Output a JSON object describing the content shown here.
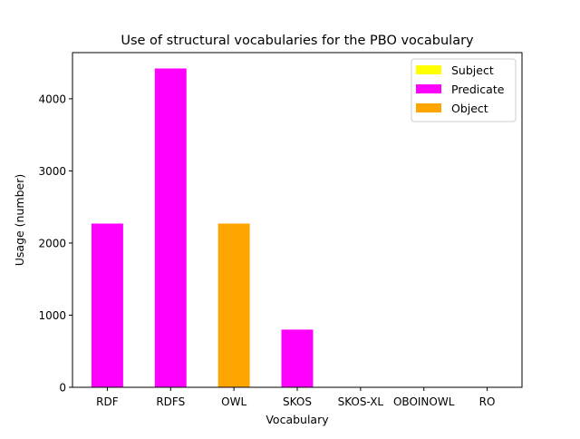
{
  "chart_data": {
    "type": "bar",
    "stacked": true,
    "title": "Use of structural vocabularies for the PBO vocabulary",
    "xlabel": "Vocabulary",
    "ylabel": "Usage (number)",
    "categories": [
      "RDF",
      "RDFS",
      "OWL",
      "SKOS",
      "SKOS-XL",
      "OBOINOWL",
      "RO"
    ],
    "series": [
      {
        "name": "Subject",
        "color": "#ffff00",
        "values": [
          0,
          0,
          0,
          0,
          0,
          0,
          0
        ]
      },
      {
        "name": "Predicate",
        "color": "#ff00ff",
        "values": [
          2270,
          4420,
          0,
          800,
          0,
          0,
          0
        ]
      },
      {
        "name": "Object",
        "color": "#ffa500",
        "values": [
          0,
          0,
          2270,
          0,
          0,
          0,
          0
        ]
      }
    ],
    "ylim": [
      0,
      4640
    ],
    "yticks": [
      0,
      1000,
      2000,
      3000,
      4000
    ],
    "grid": false,
    "legend_position": "top-right"
  }
}
